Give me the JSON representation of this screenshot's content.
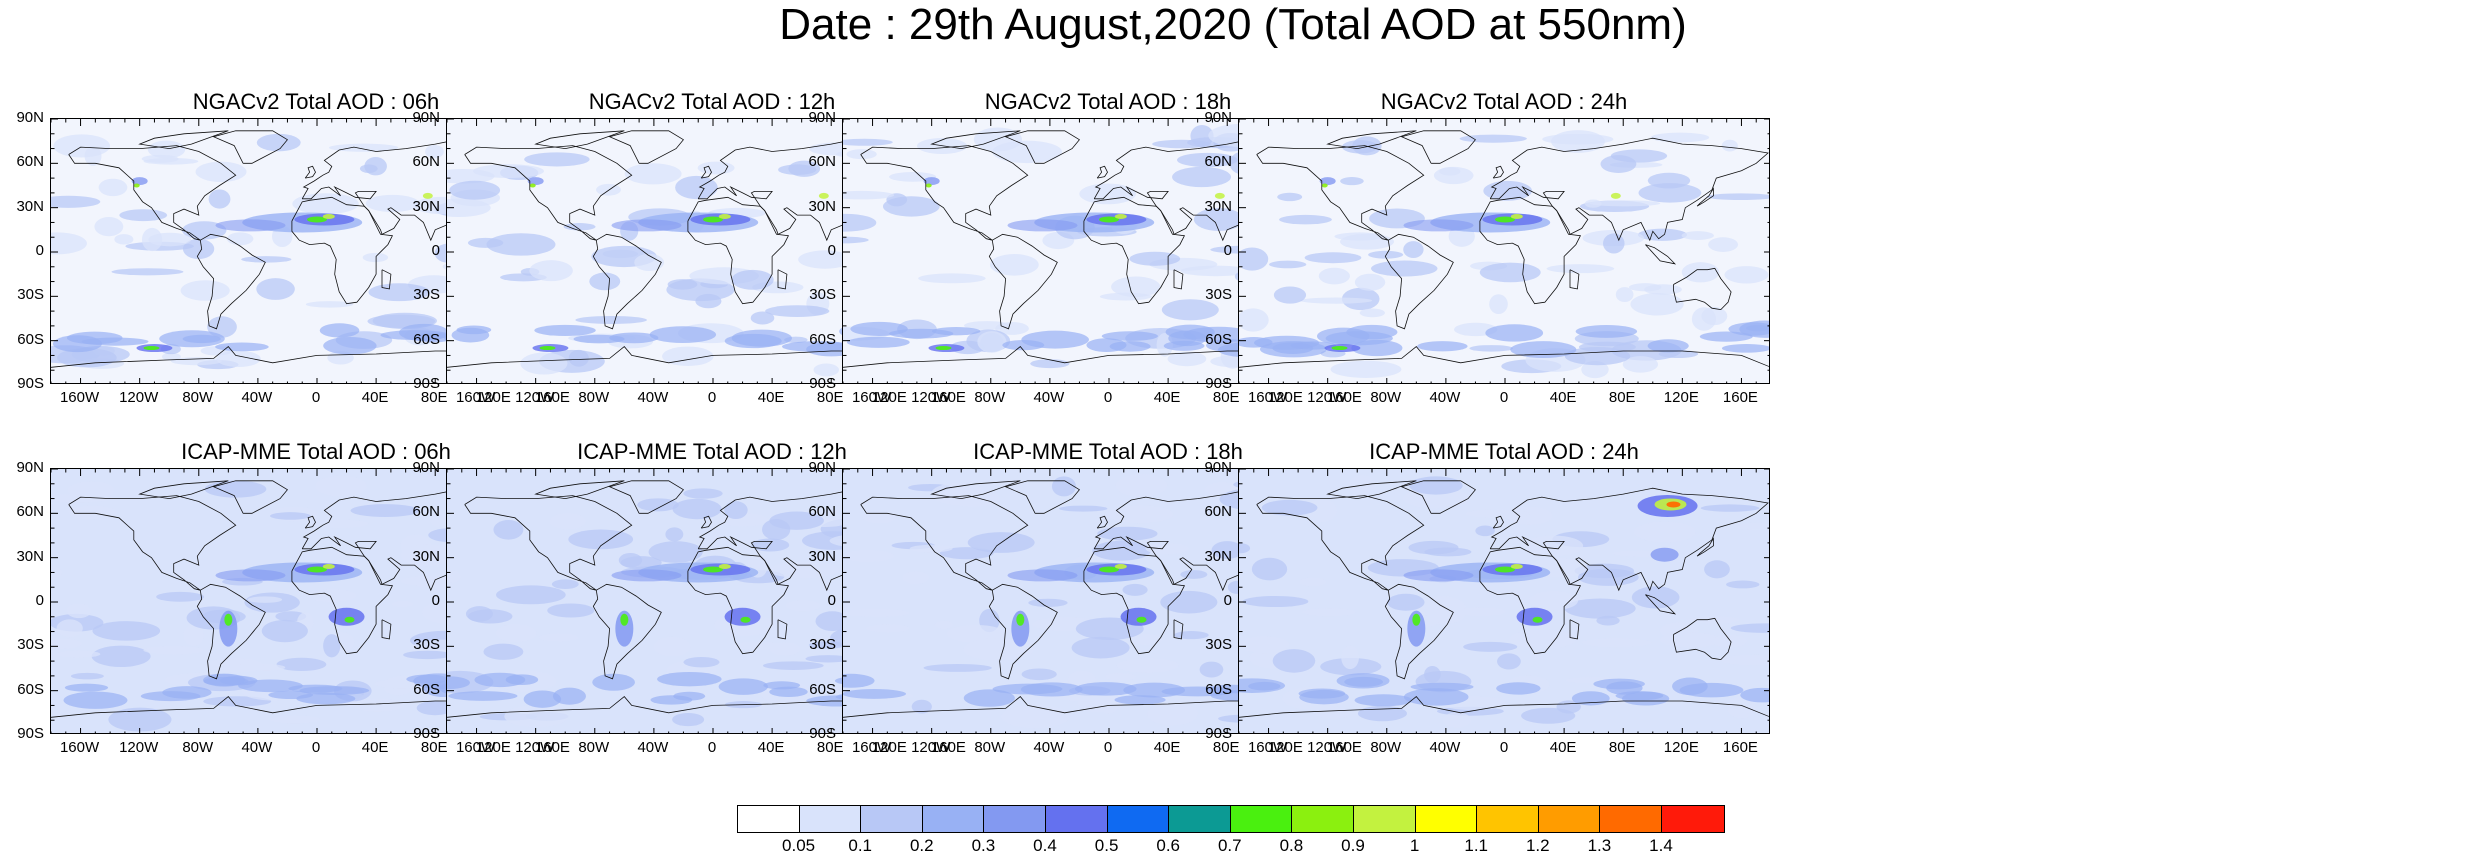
{
  "title": "Date : 29th August,2020 (Total AOD at 550nm)",
  "panels": [
    {
      "title": "NGACv2 Total AOD : 06h",
      "model": "NGACv2",
      "hour": "06h"
    },
    {
      "title": "NGACv2 Total AOD : 12h",
      "model": "NGACv2",
      "hour": "12h"
    },
    {
      "title": "NGACv2 Total AOD : 18h",
      "model": "NGACv2",
      "hour": "18h"
    },
    {
      "title": "NGACv2 Total AOD : 24h",
      "model": "NGACv2",
      "hour": "24h"
    },
    {
      "title": "ICAP-MME Total AOD : 06h",
      "model": "ICAP-MME",
      "hour": "06h"
    },
    {
      "title": "ICAP-MME Total AOD : 12h",
      "model": "ICAP-MME",
      "hour": "12h"
    },
    {
      "title": "ICAP-MME Total AOD : 18h",
      "model": "ICAP-MME",
      "hour": "18h"
    },
    {
      "title": "ICAP-MME Total AOD : 24h",
      "model": "ICAP-MME",
      "hour": "24h"
    }
  ],
  "lat_labels": [
    "90N",
    "60N",
    "30N",
    "0",
    "30S",
    "60S",
    "90S"
  ],
  "lon_labels": [
    "160W",
    "120W",
    "80W",
    "40W",
    "0",
    "40E",
    "80E",
    "120E",
    "160E"
  ],
  "colorbar": {
    "labels": [
      "0.05",
      "0.1",
      "0.2",
      "0.3",
      "0.4",
      "0.5",
      "0.6",
      "0.7",
      "0.8",
      "0.9",
      "1",
      "1.1",
      "1.2",
      "1.3",
      "1.4"
    ],
    "colors": [
      "#ffffff",
      "#d9e3fb",
      "#b8c8f6",
      "#98b1f4",
      "#8399f1",
      "#6471ef",
      "#0f6af2",
      "#0c9a94",
      "#4af00f",
      "#8bf00f",
      "#c3f23f",
      "#ffff00",
      "#ffc400",
      "#ff9c00",
      "#ff6a00",
      "#ff1a0a"
    ]
  },
  "map_extent": {
    "lon": [
      -180,
      180
    ],
    "lat": [
      -90,
      90
    ]
  }
}
